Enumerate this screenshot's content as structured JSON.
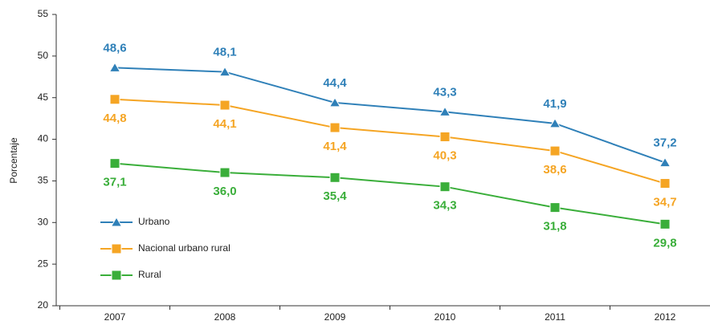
{
  "chart_data": {
    "type": "line",
    "y_label": "Porcentaje",
    "categories": [
      "2007",
      "2008",
      "2009",
      "2010",
      "2011",
      "2012"
    ],
    "ylim": [
      20,
      55
    ],
    "yticks": [
      20,
      25,
      30,
      35,
      40,
      45,
      50,
      55
    ],
    "series": [
      {
        "name": "Urbano",
        "color": "#2f80b8",
        "marker": "triangle",
        "label_side": "above",
        "values": [
          48.6,
          48.1,
          44.4,
          43.3,
          41.9,
          37.2
        ],
        "value_labels": [
          "48,6",
          "48,1",
          "44,4",
          "43,3",
          "41,9",
          "37,2"
        ]
      },
      {
        "name": "Nacional urbano rural",
        "color": "#f5a524",
        "marker": "square",
        "label_side": "below",
        "values": [
          44.8,
          44.1,
          41.4,
          40.3,
          38.6,
          34.7
        ],
        "value_labels": [
          "44,8",
          "44,1",
          "41,4",
          "40,3",
          "38,6",
          "34,7"
        ]
      },
      {
        "name": "Rural",
        "color": "#3aae3a",
        "marker": "square",
        "label_side": "below",
        "values": [
          37.1,
          36.0,
          35.4,
          34.3,
          31.8,
          29.8
        ],
        "value_labels": [
          "37,1",
          "36,0",
          "35,4",
          "34,3",
          "31,8",
          "29,8"
        ]
      }
    ]
  }
}
